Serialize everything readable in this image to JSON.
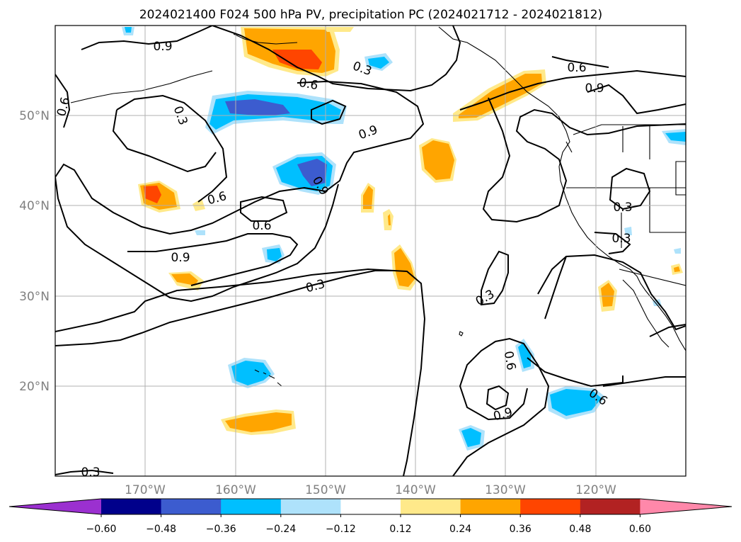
{
  "title": "2024021400 F024 500 hPa PV, precipitation PC (2024021712 - 2024021812)",
  "map": {
    "lat_labels": [
      "50°N",
      "40°N",
      "30°N",
      "20°N"
    ],
    "lon_labels": [
      "170°W",
      "160°W",
      "150°W",
      "140°W",
      "130°W",
      "120°W"
    ],
    "contour_labels": [
      "0.9",
      "0.3",
      "0.6",
      "0.6",
      "0.3",
      "0.9",
      "0.6",
      "0.9",
      "0.9",
      "0.6",
      "0.6",
      "0.9",
      "0.3",
      "0.3",
      "0.3",
      "0.6",
      "0.9",
      "0.6",
      "0.3",
      "0.3"
    ]
  },
  "colorbar": {
    "ticks": [
      "−0.60",
      "−0.48",
      "−0.36",
      "−0.24",
      "−0.12",
      "0.12",
      "0.24",
      "0.36",
      "0.48",
      "0.60"
    ],
    "colors": [
      "#9b30d0",
      "#00008b",
      "#3c5ccf",
      "#00bfff",
      "#aee2fb",
      "#ffffff",
      "#ffe98a",
      "#ffa500",
      "#ff4500",
      "#b22222",
      "#ff88aa"
    ]
  }
}
